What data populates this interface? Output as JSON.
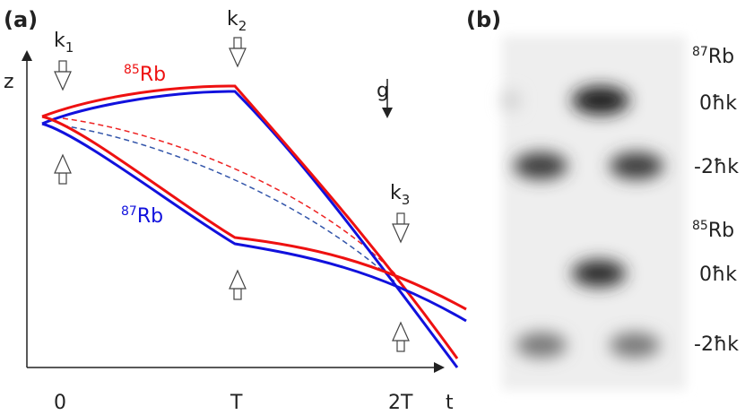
{
  "panel_a": {
    "label": "(a)",
    "axis": {
      "y_label": "z",
      "x_label": "t",
      "x_ticks": [
        "0",
        "T",
        "2T"
      ]
    },
    "pulses": [
      {
        "base": "k",
        "sub": "1"
      },
      {
        "base": "k",
        "sub": "2"
      },
      {
        "base": "k",
        "sub": "3"
      }
    ],
    "species": [
      {
        "sup": "85",
        "name": "Rb"
      },
      {
        "sup": "87",
        "name": "Rb"
      }
    ],
    "gravity": "g"
  },
  "panel_b": {
    "label": "(b)",
    "groups": [
      {
        "isotope": {
          "sup": "87",
          "name": "Rb"
        },
        "rows": [
          "0ħk",
          "-2ħk"
        ]
      },
      {
        "isotope": {
          "sup": "85",
          "name": "Rb"
        },
        "rows": [
          "0ħk",
          "-2ħk"
        ]
      }
    ]
  }
}
